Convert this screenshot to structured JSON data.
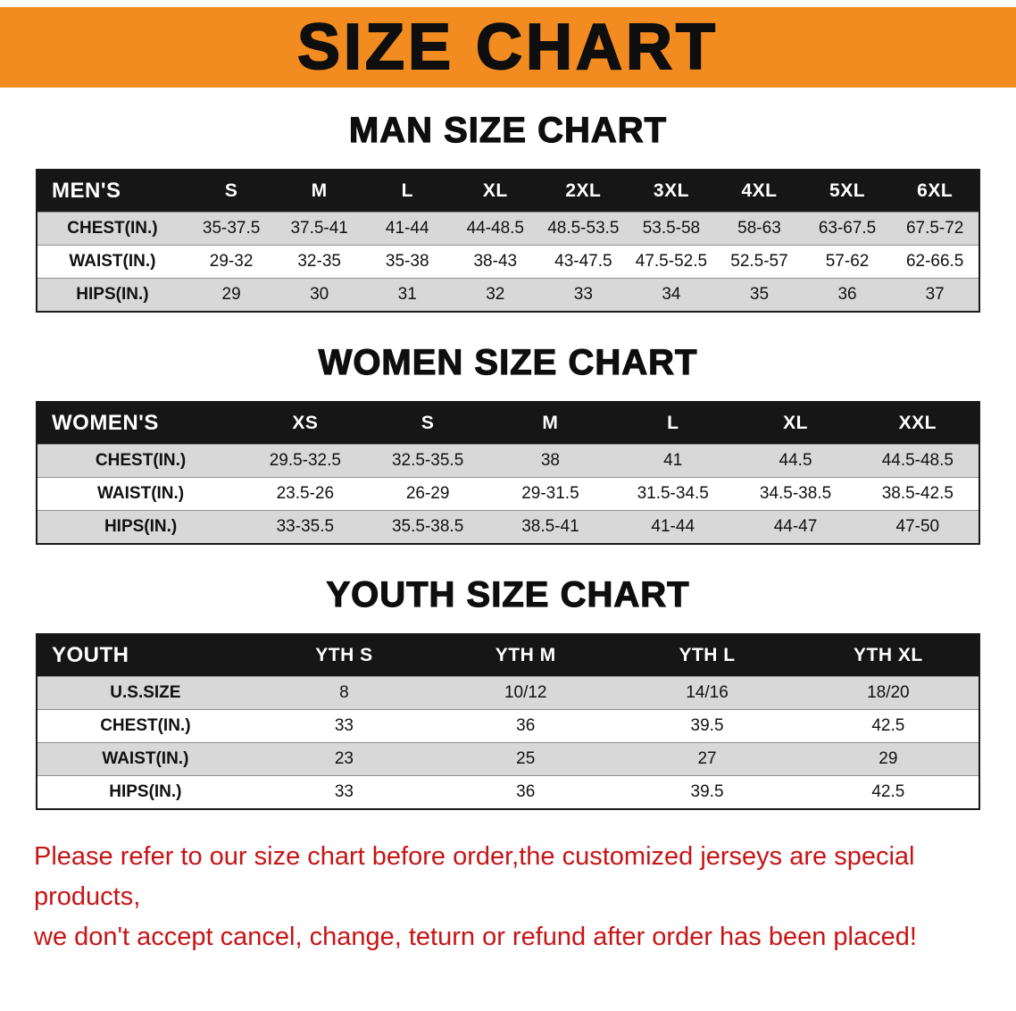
{
  "banner": {
    "title": "SIZE CHART"
  },
  "sections": [
    {
      "heading": "MAN SIZE CHART",
      "table": {
        "header": [
          "MEN'S",
          "S",
          "M",
          "L",
          "XL",
          "2XL",
          "3XL",
          "4XL",
          "5XL",
          "6XL"
        ],
        "rows": [
          [
            "CHEST(IN.)",
            "35-37.5",
            "37.5-41",
            "41-44",
            "44-48.5",
            "48.5-53.5",
            "53.5-58",
            "58-63",
            "63-67.5",
            "67.5-72"
          ],
          [
            "WAIST(IN.)",
            "29-32",
            "32-35",
            "35-38",
            "38-43",
            "43-47.5",
            "47.5-52.5",
            "52.5-57",
            "57-62",
            "62-66.5"
          ],
          [
            "HIPS(IN.)",
            "29",
            "30",
            "31",
            "32",
            "33",
            "34",
            "35",
            "36",
            "37"
          ]
        ]
      }
    },
    {
      "heading": "WOMEN SIZE CHART",
      "table": {
        "header": [
          "WOMEN'S",
          "XS",
          "S",
          "M",
          "L",
          "XL",
          "XXL"
        ],
        "rows": [
          [
            "CHEST(IN.)",
            "29.5-32.5",
            "32.5-35.5",
            "38",
            "41",
            "44.5",
            "44.5-48.5"
          ],
          [
            "WAIST(IN.)",
            "23.5-26",
            "26-29",
            "29-31.5",
            "31.5-34.5",
            "34.5-38.5",
            "38.5-42.5"
          ],
          [
            "HIPS(IN.)",
            "33-35.5",
            "35.5-38.5",
            "38.5-41",
            "41-44",
            "44-47",
            "47-50"
          ]
        ]
      }
    },
    {
      "heading": "YOUTH SIZE CHART",
      "table": {
        "header": [
          "YOUTH",
          "YTH S",
          "YTH M",
          "YTH L",
          "YTH XL"
        ],
        "rows": [
          [
            "U.S.SIZE",
            "8",
            "10/12",
            "14/16",
            "18/20"
          ],
          [
            "CHEST(IN.)",
            "33",
            "36",
            "39.5",
            "42.5"
          ],
          [
            "WAIST(IN.)",
            "23",
            "25",
            "27",
            "29"
          ],
          [
            "HIPS(IN.)",
            "33",
            "36",
            "39.5",
            "42.5"
          ]
        ]
      }
    }
  ],
  "disclaimer": {
    "line1": "Please refer to our size chart before order,the customized jerseys are special products,",
    "line2": "we don't accept cancel, change, teturn or refund after order has been placed!"
  },
  "colors": {
    "banner_bg": "#f28b20",
    "table_header_bg": "#161616",
    "row_alt_bg": "#d8d8d8",
    "disclaimer_red": "#c81414"
  }
}
